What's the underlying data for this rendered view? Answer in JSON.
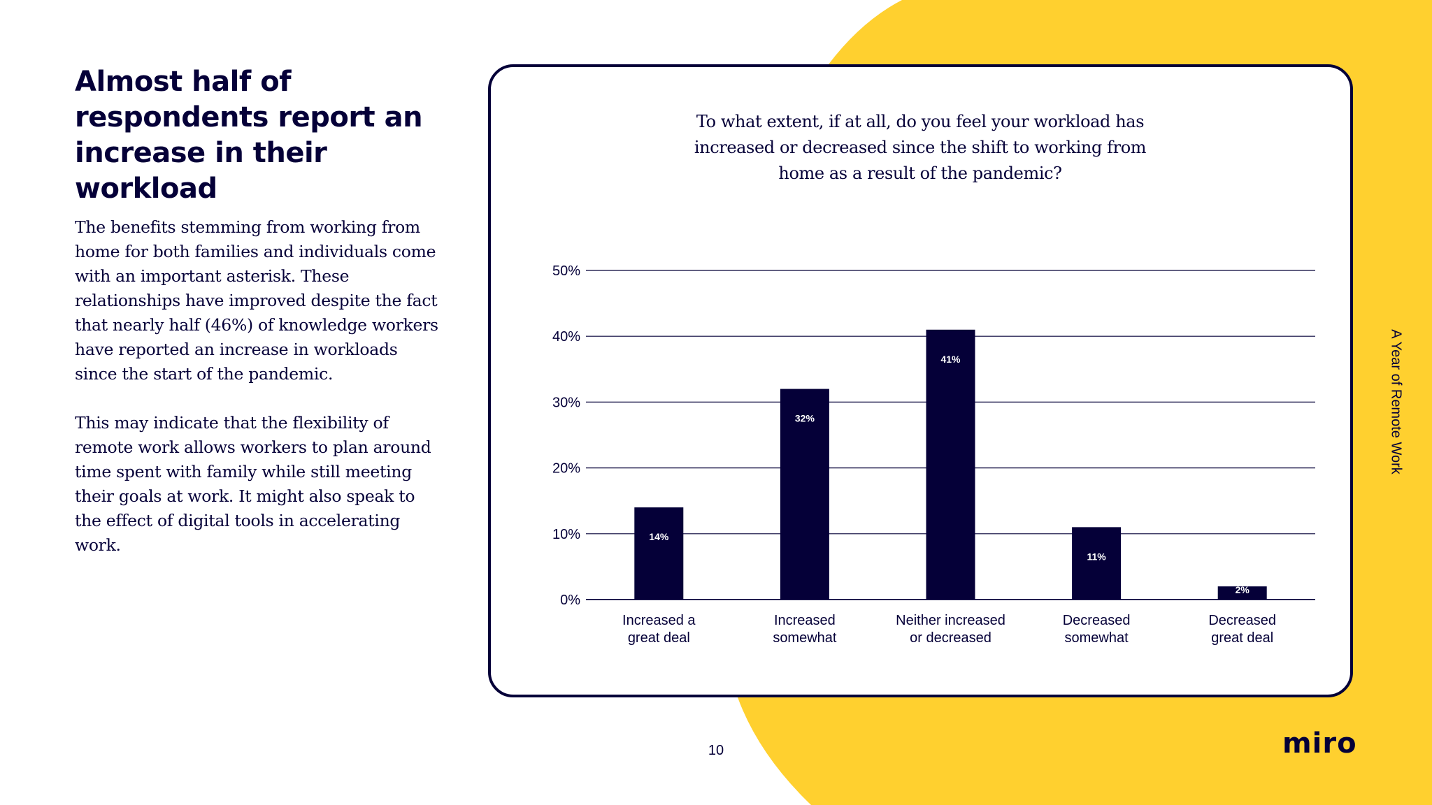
{
  "colors": {
    "accent_yellow": "#FFD02F",
    "navy": "#050038",
    "background": "#FFFFFF",
    "grid": "#050038"
  },
  "headline": "Almost half of respondents report an increase in their workload",
  "paragraphs": [
    "The benefits stemming from working from home for both families and individuals come with an important asterisk. These relationships have improved despite the fact that nearly half (46%) of knowledge workers have reported an increase in workloads since the start of the pandemic.",
    "This may indicate that the flexibility of remote work allows workers to plan around time spent with family while still meeting their goals at work. It might also speak to the effect of digital tools in accelerating work."
  ],
  "chart_data": {
    "type": "bar",
    "title": "To what extent, if at all, do you feel your workload has increased or decreased since the shift to working from home as a result of the pandemic?",
    "categories": [
      [
        "Increased a",
        "great deal"
      ],
      [
        "Increased",
        "somewhat"
      ],
      [
        "Neither increased",
        "or decreased"
      ],
      [
        "Decreased",
        "somewhat"
      ],
      [
        "Decreased",
        "great deal"
      ]
    ],
    "values": [
      14,
      32,
      41,
      11,
      2
    ],
    "data_labels": [
      "14%",
      "32%",
      "41%",
      "11%",
      "2%"
    ],
    "ylim": [
      0,
      50
    ],
    "yticks": [
      0,
      10,
      20,
      30,
      40,
      50
    ],
    "ytick_labels": [
      "0%",
      "10%",
      "20%",
      "30%",
      "40%",
      "50%"
    ],
    "grid": true,
    "legend": false
  },
  "side_label": "A Year of Remote Work",
  "page_number": "10",
  "logo_text": "miro"
}
